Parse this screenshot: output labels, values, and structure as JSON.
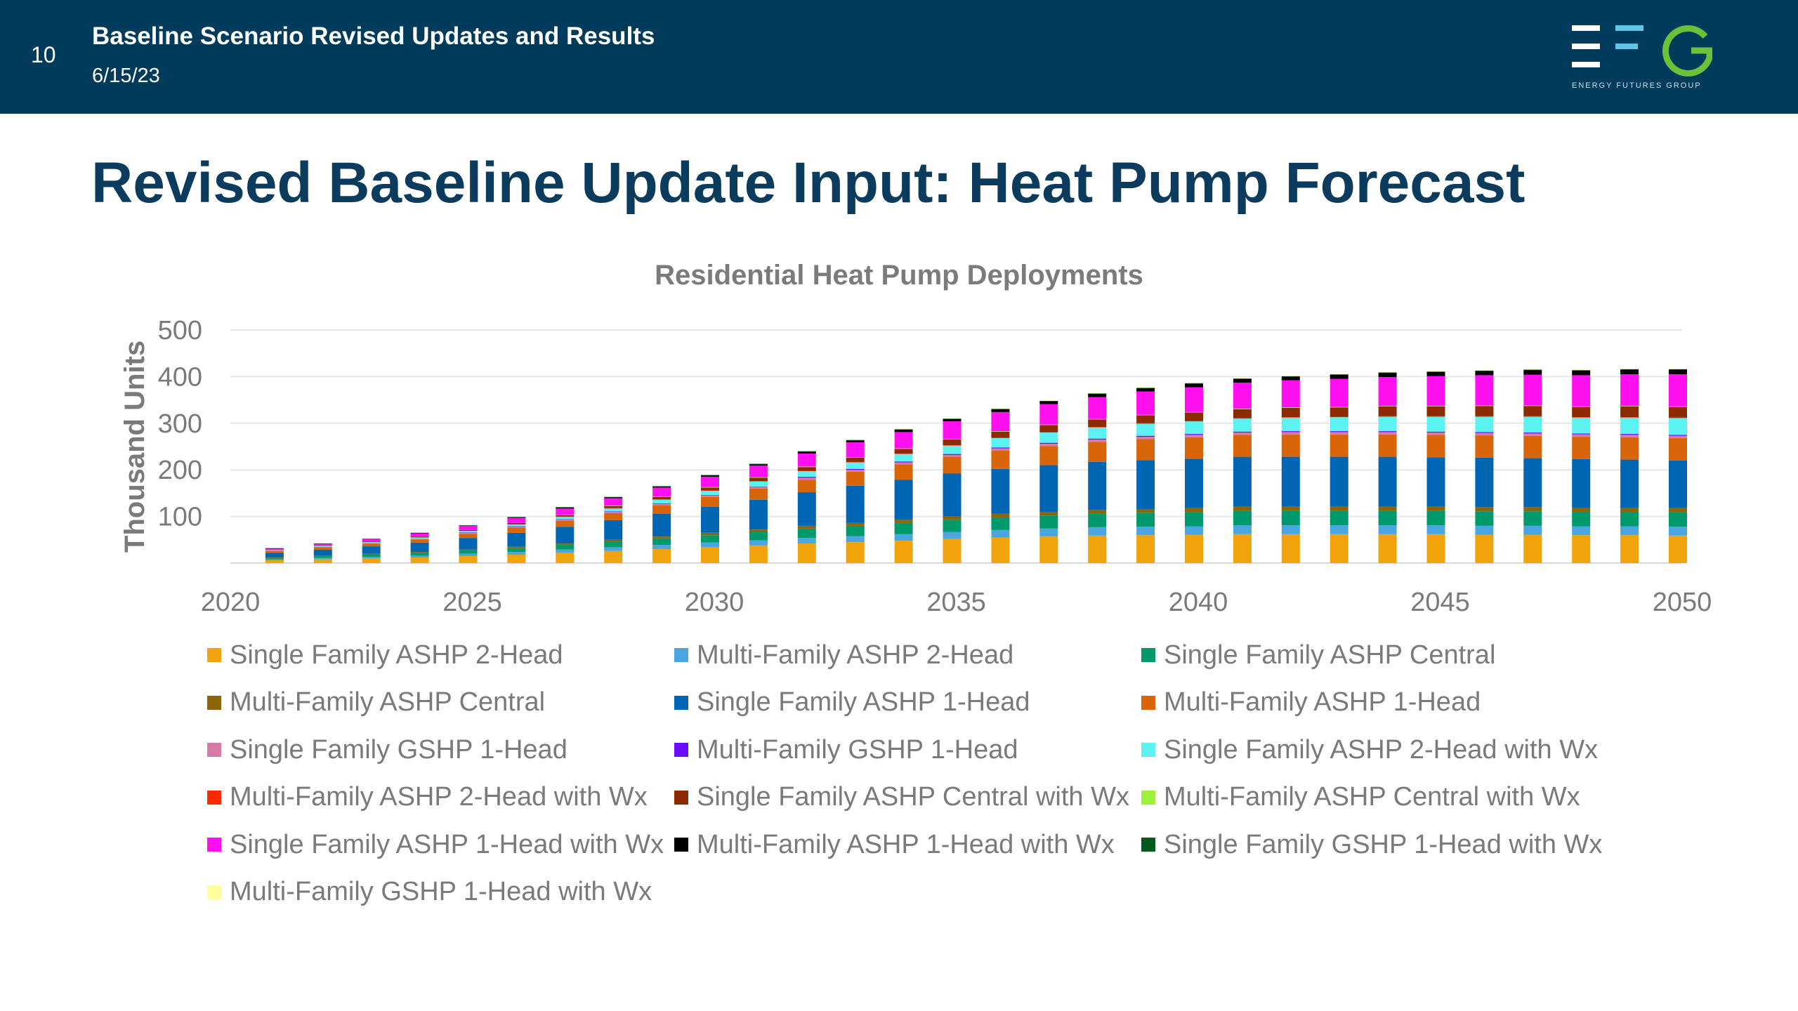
{
  "header": {
    "slide_number": "10",
    "title": "Baseline Scenario Revised Updates and Results",
    "date": "6/15/23",
    "logo_text": "ENERGY FUTURES GROUP"
  },
  "page_title": "Revised Baseline Update Input: Heat Pump Forecast",
  "chart_data": {
    "type": "bar",
    "stacked": true,
    "title": "Residential Heat Pump Deployments",
    "ylabel": "Thousand Units",
    "xlabel": "",
    "ylim": [
      0,
      500
    ],
    "y_ticks": [
      100,
      200,
      300,
      400,
      500
    ],
    "x_tick_labels": [
      "2020",
      "2025",
      "2030",
      "2035",
      "2040",
      "2045",
      "2050"
    ],
    "grid": true,
    "legend_position": "bottom",
    "categories": [
      "2021",
      "2022",
      "2023",
      "2024",
      "2025",
      "2026",
      "2027",
      "2028",
      "2029",
      "2030",
      "2031",
      "2032",
      "2033",
      "2034",
      "2035",
      "2036",
      "2037",
      "2038",
      "2039",
      "2040",
      "2041",
      "2042",
      "2043",
      "2044",
      "2045",
      "2046",
      "2047",
      "2048",
      "2049",
      "2050"
    ],
    "series": [
      {
        "name": "Single Family ASHP 2-Head",
        "color": "#f0a30a",
        "values": [
          6,
          8,
          10,
          12,
          15,
          18,
          22,
          26,
          30,
          34,
          38,
          42,
          45,
          48,
          52,
          55,
          57,
          59,
          60,
          61,
          62,
          62,
          62,
          62,
          62,
          61,
          61,
          60,
          60,
          59
        ]
      },
      {
        "name": "Multi-Family ASHP 2-Head",
        "color": "#4aa6e0",
        "values": [
          2,
          3,
          3,
          4,
          5,
          6,
          7,
          8,
          9,
          10,
          11,
          12,
          13,
          14,
          15,
          16,
          17,
          18,
          18,
          18,
          19,
          19,
          19,
          19,
          19,
          19,
          19,
          19,
          19,
          19
        ]
      },
      {
        "name": "Single Family ASHP Central",
        "color": "#00996b",
        "values": [
          3,
          4,
          5,
          6,
          7,
          8,
          10,
          12,
          14,
          16,
          18,
          20,
          22,
          24,
          26,
          27,
          28,
          29,
          30,
          30,
          31,
          31,
          31,
          31,
          31,
          31,
          31,
          31,
          31,
          31
        ]
      },
      {
        "name": "Multi-Family ASHP Central",
        "color": "#8b6508",
        "values": [
          1,
          1,
          2,
          2,
          2,
          3,
          3,
          4,
          4,
          5,
          5,
          6,
          6,
          7,
          7,
          8,
          8,
          8,
          8,
          9,
          9,
          9,
          9,
          9,
          9,
          9,
          9,
          9,
          9,
          9
        ]
      },
      {
        "name": "Single Family ASHP 1-Head",
        "color": "#0066b3",
        "values": [
          10,
          13,
          16,
          20,
          25,
          30,
          36,
          42,
          49,
          56,
          64,
          72,
          80,
          86,
          92,
          96,
          100,
          103,
          105,
          106,
          107,
          107,
          107,
          107,
          106,
          106,
          105,
          104,
          103,
          102
        ]
      },
      {
        "name": "Multi-Family ASHP 1-Head",
        "color": "#d9650b",
        "values": [
          4,
          5,
          6,
          7,
          9,
          11,
          13,
          15,
          18,
          21,
          24,
          27,
          30,
          33,
          36,
          39,
          41,
          43,
          45,
          46,
          47,
          48,
          48,
          48,
          48,
          48,
          48,
          48,
          48,
          48
        ]
      },
      {
        "name": "Single Family GSHP 1-Head",
        "color": "#d67ba8",
        "values": [
          1,
          1,
          1,
          1,
          2,
          2,
          2,
          3,
          3,
          3,
          3,
          4,
          4,
          4,
          4,
          5,
          5,
          5,
          5,
          5,
          5,
          5,
          5,
          5,
          5,
          5,
          5,
          5,
          5,
          5
        ]
      },
      {
        "name": "Multi-Family GSHP 1-Head",
        "color": "#6a0dff",
        "values": [
          0,
          0,
          0,
          0,
          1,
          1,
          1,
          1,
          1,
          1,
          1,
          2,
          2,
          2,
          2,
          2,
          2,
          2,
          2,
          2,
          2,
          2,
          2,
          2,
          2,
          2,
          2,
          2,
          2,
          2
        ]
      },
      {
        "name": "Single Family ASHP 2-Head with Wx",
        "color": "#5df2f2",
        "values": [
          1,
          2,
          2,
          3,
          3,
          4,
          5,
          6,
          8,
          9,
          11,
          12,
          14,
          16,
          18,
          20,
          22,
          24,
          26,
          27,
          28,
          29,
          30,
          31,
          32,
          33,
          34,
          34,
          35,
          36
        ]
      },
      {
        "name": "Multi-Family ASHP 2-Head with Wx",
        "color": "#ff2a00",
        "values": [
          0,
          0,
          0,
          0,
          0,
          0,
          1,
          1,
          1,
          1,
          1,
          1,
          1,
          1,
          1,
          1,
          1,
          1,
          1,
          1,
          1,
          1,
          1,
          1,
          1,
          1,
          1,
          1,
          1,
          1
        ]
      },
      {
        "name": "Single Family ASHP Central with Wx",
        "color": "#8c2a00",
        "values": [
          1,
          1,
          1,
          2,
          2,
          3,
          3,
          4,
          5,
          6,
          7,
          8,
          9,
          10,
          12,
          13,
          15,
          16,
          17,
          18,
          19,
          20,
          20,
          21,
          21,
          22,
          22,
          22,
          23,
          23
        ]
      },
      {
        "name": "Multi-Family ASHP Central with Wx",
        "color": "#9ef03c",
        "values": [
          0,
          0,
          0,
          0,
          0,
          0,
          1,
          1,
          1,
          1,
          1,
          1,
          1,
          1,
          1,
          1,
          1,
          1,
          1,
          1,
          1,
          1,
          1,
          1,
          1,
          1,
          1,
          1,
          1,
          1
        ]
      },
      {
        "name": "Single Family ASHP 1-Head with Wx",
        "color": "#ff10ee",
        "values": [
          2,
          3,
          5,
          7,
          9,
          11,
          13,
          16,
          19,
          22,
          25,
          28,
          32,
          35,
          38,
          41,
          44,
          47,
          50,
          53,
          56,
          58,
          60,
          62,
          64,
          65,
          66,
          67,
          68,
          69
        ]
      },
      {
        "name": "Multi-Family ASHP 1-Head with Wx",
        "color": "#000000",
        "values": [
          1,
          1,
          1,
          1,
          1,
          1,
          2,
          2,
          2,
          3,
          3,
          4,
          4,
          5,
          5,
          6,
          6,
          7,
          7,
          8,
          8,
          8,
          9,
          9,
          9,
          9,
          10,
          10,
          10,
          10
        ]
      },
      {
        "name": "Single Family GSHP 1-Head with Wx",
        "color": "#005a1e",
        "values": [
          0,
          0,
          0,
          0,
          0,
          1,
          1,
          1,
          1,
          1,
          1,
          1,
          1,
          1,
          1,
          1,
          1,
          1,
          1,
          1,
          1,
          1,
          1,
          1,
          1,
          1,
          1,
          1,
          1,
          1
        ]
      },
      {
        "name": "Multi-Family GSHP 1-Head with Wx",
        "color": "#ffff9e",
        "values": [
          0,
          0,
          0,
          0,
          0,
          0,
          0,
          0,
          0,
          0,
          0,
          0,
          0,
          1,
          1,
          1,
          1,
          1,
          1,
          1,
          1,
          1,
          1,
          1,
          1,
          1,
          1,
          1,
          1,
          1
        ]
      }
    ]
  }
}
